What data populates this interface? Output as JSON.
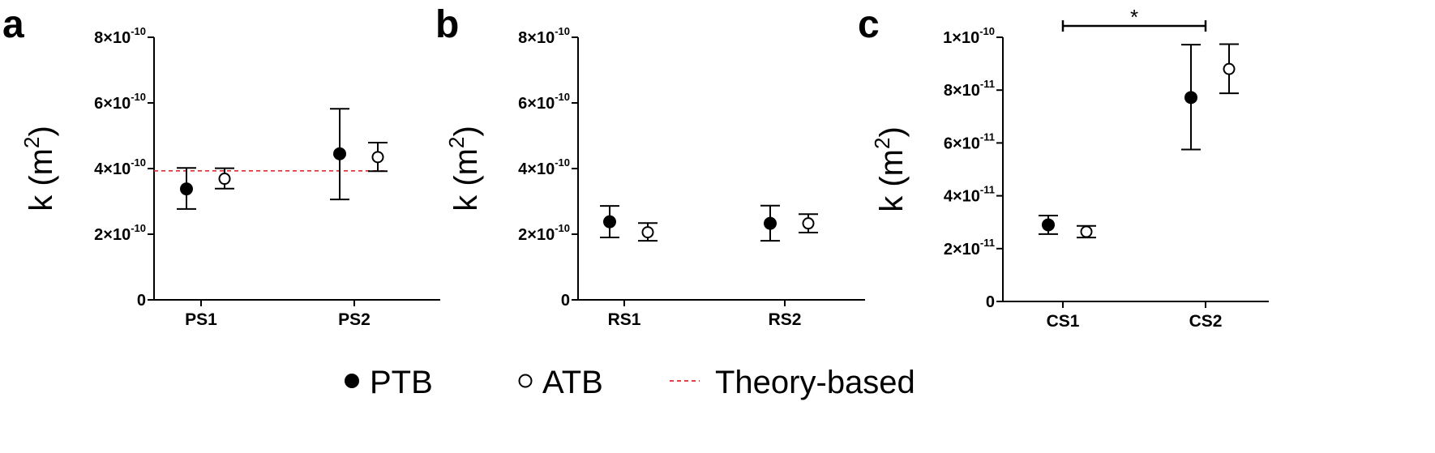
{
  "legend": [
    {
      "name": "PTB",
      "marker": "filled-circle"
    },
    {
      "name": "ATB",
      "marker": "open-circle"
    },
    {
      "name": "Theory-based",
      "marker": "dashed-line",
      "color": "#e8262b"
    }
  ],
  "colors": {
    "axis": "#000000",
    "theory_line": "#e8262b"
  },
  "chart_data": [
    {
      "panel": "a",
      "type": "scatter",
      "ylabel_base": "k (m",
      "ylabel_sup": "2",
      "ylabel_close": ")",
      "ylim": [
        0,
        8e-10
      ],
      "yticks": [
        {
          "value": 0,
          "mantissa": "0",
          "exp": ""
        },
        {
          "value": 2e-10,
          "mantissa": "2×10",
          "exp": "-10"
        },
        {
          "value": 4e-10,
          "mantissa": "4×10",
          "exp": "-10"
        },
        {
          "value": 6e-10,
          "mantissa": "6×10",
          "exp": "-10"
        },
        {
          "value": 8e-10,
          "mantissa": "8×10",
          "exp": "-10"
        }
      ],
      "categories": [
        "PS1",
        "PS2"
      ],
      "series": [
        {
          "name": "PTB",
          "marker": "filled",
          "values": [
            3.38e-10,
            4.45e-10
          ],
          "err_low": [
            2.77e-10,
            3.06e-10
          ],
          "err_high": [
            4.02e-10,
            5.82e-10
          ]
        },
        {
          "name": "ATB",
          "marker": "open",
          "values": [
            3.69e-10,
            4.35e-10
          ],
          "err_low": [
            3.39e-10,
            3.92e-10
          ],
          "err_high": [
            4.01e-10,
            4.79e-10
          ]
        }
      ],
      "reference_line": {
        "name": "Theory-based",
        "value": 3.93e-10
      }
    },
    {
      "panel": "b",
      "type": "scatter",
      "ylabel_base": "k (m",
      "ylabel_sup": "2",
      "ylabel_close": ")",
      "ylim": [
        0,
        8e-10
      ],
      "yticks": [
        {
          "value": 0,
          "mantissa": "0",
          "exp": ""
        },
        {
          "value": 2e-10,
          "mantissa": "2×10",
          "exp": "-10"
        },
        {
          "value": 4e-10,
          "mantissa": "4×10",
          "exp": "-10"
        },
        {
          "value": 6e-10,
          "mantissa": "6×10",
          "exp": "-10"
        },
        {
          "value": 8e-10,
          "mantissa": "8×10",
          "exp": "-10"
        }
      ],
      "categories": [
        "RS1",
        "RS2"
      ],
      "series": [
        {
          "name": "PTB",
          "marker": "filled",
          "values": [
            2.38e-10,
            2.33e-10
          ],
          "err_low": [
            1.9e-10,
            1.8e-10
          ],
          "err_high": [
            2.86e-10,
            2.87e-10
          ]
        },
        {
          "name": "ATB",
          "marker": "open",
          "values": [
            2.06e-10,
            2.33e-10
          ],
          "err_low": [
            1.8e-10,
            2.05e-10
          ],
          "err_high": [
            2.34e-10,
            2.61e-10
          ]
        }
      ]
    },
    {
      "panel": "c",
      "type": "scatter",
      "ylabel_base": "k (m",
      "ylabel_sup": "2",
      "ylabel_close": ")",
      "ylim": [
        0,
        1e-10
      ],
      "yticks": [
        {
          "value": 0,
          "mantissa": "0",
          "exp": ""
        },
        {
          "value": 2e-11,
          "mantissa": "2×10",
          "exp": "-11"
        },
        {
          "value": 4e-11,
          "mantissa": "4×10",
          "exp": "-11"
        },
        {
          "value": 6e-11,
          "mantissa": "6×10",
          "exp": "-11"
        },
        {
          "value": 8e-11,
          "mantissa": "8×10",
          "exp": "-11"
        },
        {
          "value": 1e-10,
          "mantissa": "1×10",
          "exp": "-10"
        }
      ],
      "categories": [
        "CS1",
        "CS2"
      ],
      "series": [
        {
          "name": "PTB",
          "marker": "filled",
          "values": [
            2.9e-11,
            7.72e-11
          ],
          "err_low": [
            2.55e-11,
            5.75e-11
          ],
          "err_high": [
            3.25e-11,
            9.72e-11
          ]
        },
        {
          "name": "ATB",
          "marker": "open",
          "values": [
            2.64e-11,
            8.8e-11
          ],
          "err_low": [
            2.42e-11,
            7.88e-11
          ],
          "err_high": [
            2.86e-11,
            9.74e-11
          ]
        }
      ],
      "significance": {
        "label": "*",
        "between": [
          "CS1",
          "CS2"
        ]
      }
    }
  ]
}
